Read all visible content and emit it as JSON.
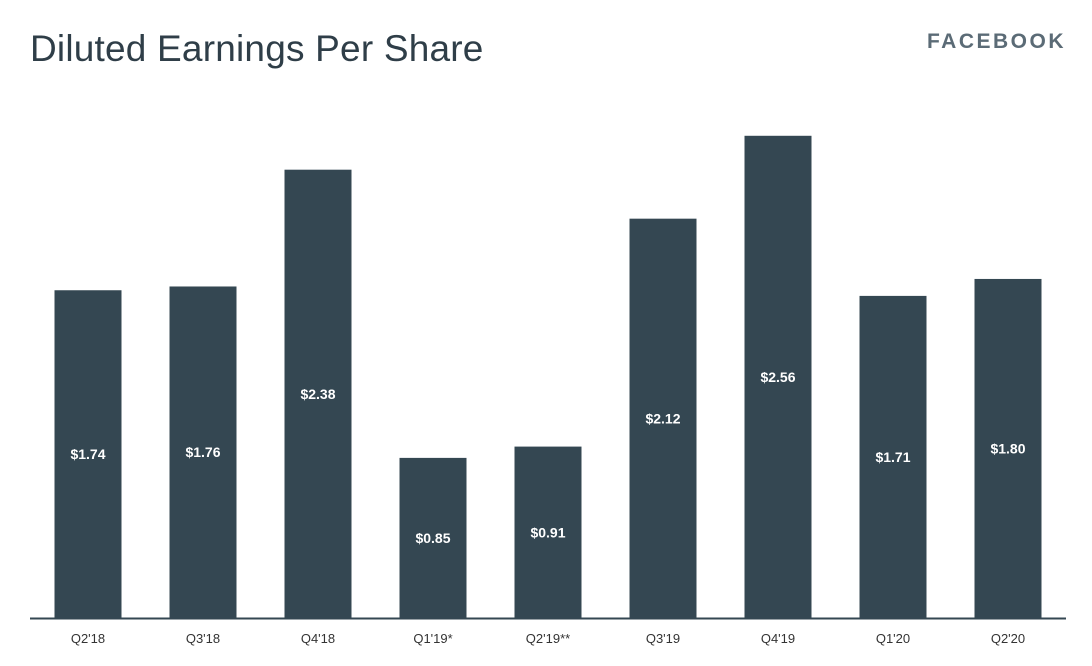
{
  "header": {
    "title": "Diluted Earnings Per Share",
    "brand": "FACEBOOK"
  },
  "colors": {
    "bar": "#344752",
    "axis": "#344752",
    "title": "#2f3e48",
    "brand": "#5b6b76"
  },
  "chart_data": {
    "type": "bar",
    "title": "Diluted Earnings Per Share",
    "xlabel": "",
    "ylabel": "",
    "ylim": [
      0,
      2.75
    ],
    "grid": false,
    "categories": [
      "Q2'18",
      "Q3'18",
      "Q4'18",
      "Q1'19*",
      "Q2'19**",
      "Q3'19",
      "Q4'19",
      "Q1'20",
      "Q2'20"
    ],
    "values": [
      1.74,
      1.76,
      2.38,
      0.85,
      0.91,
      2.12,
      2.56,
      1.71,
      1.8
    ],
    "data_labels": [
      "$1.74",
      "$1.76",
      "$2.38",
      "$0.85",
      "$0.91",
      "$2.12",
      "$2.56",
      "$1.71",
      "$1.80"
    ]
  }
}
